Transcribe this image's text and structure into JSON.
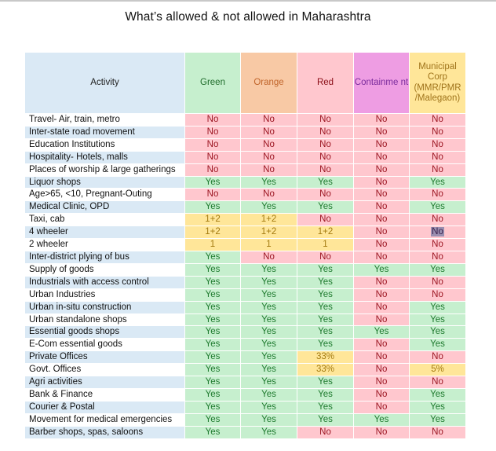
{
  "title": "What’s allowed & not allowed in Maharashtra",
  "columns": {
    "activity": "Activity",
    "green": "Green",
    "orange": "Orange",
    "red": "Red",
    "containment": "Containme nt",
    "municipal": "Municipal Corp (MMR/PMR /Malegaon)"
  },
  "colors": {
    "yes_bg": "#c6efce",
    "no_bg": "#ffc7ce",
    "partial_bg": "#ffe699",
    "activity_header_bg": "#dae9f5",
    "orange_header_bg": "#f8c9a5",
    "containment_header_bg": "#ee9de3"
  },
  "rows": [
    {
      "activity": "Travel- Air, train, metro",
      "green": "No",
      "orange": "No",
      "red": "No",
      "containment": "No",
      "municipal": "No"
    },
    {
      "activity": "Inter-state road movement",
      "green": "No",
      "orange": "No",
      "red": "No",
      "containment": "No",
      "municipal": "No"
    },
    {
      "activity": "Education Institutions",
      "green": "No",
      "orange": "No",
      "red": "No",
      "containment": "No",
      "municipal": "No"
    },
    {
      "activity": "Hospitality- Hotels, malls",
      "green": "No",
      "orange": "No",
      "red": "No",
      "containment": "No",
      "municipal": "No"
    },
    {
      "activity": "Places of worship & large gatherings",
      "green": "No",
      "orange": "No",
      "red": "No",
      "containment": "No",
      "municipal": "No"
    },
    {
      "activity": "Liquor shops",
      "green": "Yes",
      "orange": "Yes",
      "red": "Yes",
      "containment": "No",
      "municipal": "Yes"
    },
    {
      "activity": "Age>65, <10, Pregnant-Outing",
      "green": "No",
      "orange": "No",
      "red": "No",
      "containment": "No",
      "municipal": "No"
    },
    {
      "activity": "Medical Clinic, OPD",
      "green": "Yes",
      "orange": "Yes",
      "red": "Yes",
      "containment": "No",
      "municipal": "Yes"
    },
    {
      "activity": "Taxi, cab",
      "green": "1+2",
      "orange": "1+2",
      "red": "No",
      "containment": "No",
      "municipal": "No"
    },
    {
      "activity": "4 wheeler",
      "green": "1+2",
      "orange": "1+2",
      "red": "1+2",
      "containment": "No",
      "municipal": "No"
    },
    {
      "activity": "2 wheeler",
      "green": "1",
      "orange": "1",
      "red": "1",
      "containment": "No",
      "municipal": "No"
    },
    {
      "activity": "Inter-district plying of bus",
      "green": "Yes",
      "orange": "No",
      "red": "No",
      "containment": "No",
      "municipal": "No"
    },
    {
      "activity": "Supply of goods",
      "green": "Yes",
      "orange": "Yes",
      "red": "Yes",
      "containment": "Yes",
      "municipal": "Yes"
    },
    {
      "activity": "Industrials with access control",
      "green": "Yes",
      "orange": "Yes",
      "red": "Yes",
      "containment": "No",
      "municipal": "No"
    },
    {
      "activity": "Urban Industries",
      "green": "Yes",
      "orange": "Yes",
      "red": "Yes",
      "containment": "No",
      "municipal": "No"
    },
    {
      "activity": "Urban in-situ construction",
      "green": "Yes",
      "orange": "Yes",
      "red": "Yes",
      "containment": "No",
      "municipal": "Yes"
    },
    {
      "activity": "Urban standalone shops",
      "green": "Yes",
      "orange": "Yes",
      "red": "Yes",
      "containment": "No",
      "municipal": "Yes"
    },
    {
      "activity": "Essential goods shops",
      "green": "Yes",
      "orange": "Yes",
      "red": "Yes",
      "containment": "Yes",
      "municipal": "Yes"
    },
    {
      "activity": "E-Com essential goods",
      "green": "Yes",
      "orange": "Yes",
      "red": "Yes",
      "containment": "No",
      "municipal": "Yes"
    },
    {
      "activity": "Private Offices",
      "green": "Yes",
      "orange": "Yes",
      "red": "33%",
      "containment": "No",
      "municipal": "No"
    },
    {
      "activity": "Govt. Offices",
      "green": "Yes",
      "orange": "Yes",
      "red": "33%",
      "containment": "No",
      "municipal": "5%"
    },
    {
      "activity": "Agri activities",
      "green": "Yes",
      "orange": "Yes",
      "red": "Yes",
      "containment": "No",
      "municipal": "No"
    },
    {
      "activity": "Bank & Finance",
      "green": "Yes",
      "orange": "Yes",
      "red": "Yes",
      "containment": "No",
      "municipal": "Yes"
    },
    {
      "activity": "Courier & Postal",
      "green": "Yes",
      "orange": "Yes",
      "red": "Yes",
      "containment": "No",
      "municipal": "Yes"
    },
    {
      "activity": "Movement for medical emergencies",
      "green": "Yes",
      "orange": "Yes",
      "red": "Yes",
      "containment": "Yes",
      "municipal": "Yes"
    },
    {
      "activity": "Barber shops, spas, saloons",
      "green": "Yes",
      "orange": "Yes",
      "red": "No",
      "containment": "No",
      "municipal": "No"
    }
  ]
}
